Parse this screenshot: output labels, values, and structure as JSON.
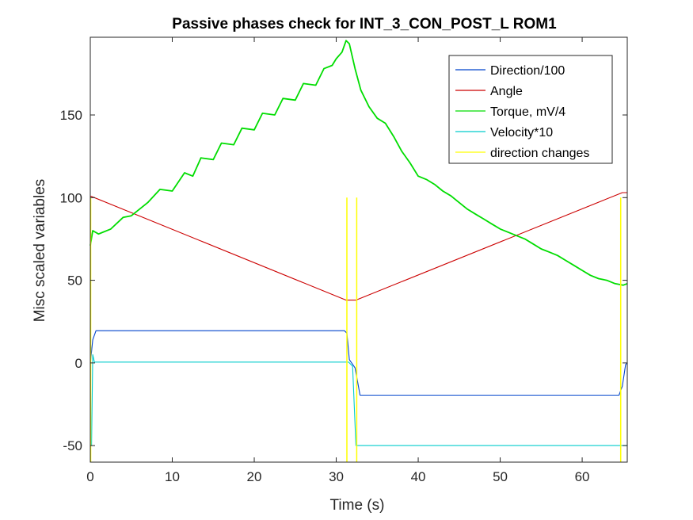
{
  "chart_data": {
    "type": "line",
    "title": "Passive phases check for INT_3_CON_POST_L ROM1",
    "xlabel": "Time (s)",
    "ylabel": "Misc scaled variables",
    "xlim": [
      0,
      65.5
    ],
    "ylim": [
      -60,
      197
    ],
    "xticks": [
      0,
      10,
      20,
      30,
      40,
      50,
      60
    ],
    "yticks": [
      -50,
      0,
      50,
      100,
      150
    ],
    "xtick_labels": [
      "0",
      "10",
      "20",
      "30",
      "40",
      "50",
      "60"
    ],
    "ytick_labels": [
      "-50",
      "0",
      "50",
      "100",
      "150"
    ],
    "legend_position": "top-right",
    "series": [
      {
        "name": "Direction/100",
        "color": "#0044cc",
        "points": [
          [
            0,
            -0.5
          ],
          [
            0.3,
            14
          ],
          [
            0.7,
            19.5
          ],
          [
            31,
            19.5
          ],
          [
            31.3,
            18
          ],
          [
            31.6,
            2
          ],
          [
            32.3,
            -3
          ],
          [
            32.9,
            -19.5
          ],
          [
            64.5,
            -19.5
          ],
          [
            64.9,
            -14
          ],
          [
            65.3,
            -1
          ],
          [
            65.5,
            0
          ]
        ]
      },
      {
        "name": "Angle",
        "color": "#cc0000",
        "points": [
          [
            0,
            101
          ],
          [
            31.2,
            38
          ],
          [
            32.4,
            38
          ],
          [
            64.9,
            103
          ],
          [
            65.5,
            103
          ]
        ]
      },
      {
        "name": "Torque, mV/4",
        "color": "#00dd00",
        "points": [
          [
            0,
            71
          ],
          [
            0.3,
            80
          ],
          [
            1,
            78
          ],
          [
            2.5,
            81
          ],
          [
            4,
            88
          ],
          [
            5,
            89
          ],
          [
            7,
            97
          ],
          [
            8.5,
            105
          ],
          [
            10,
            104
          ],
          [
            11.5,
            115
          ],
          [
            12.5,
            113
          ],
          [
            13.5,
            124
          ],
          [
            15,
            123
          ],
          [
            16,
            133
          ],
          [
            17.5,
            132
          ],
          [
            18.5,
            142
          ],
          [
            20,
            141
          ],
          [
            21,
            151
          ],
          [
            22.5,
            150
          ],
          [
            23.5,
            160
          ],
          [
            25,
            159
          ],
          [
            26,
            169
          ],
          [
            27.5,
            168
          ],
          [
            28.5,
            178
          ],
          [
            29.5,
            180
          ],
          [
            30,
            184
          ],
          [
            30.7,
            188
          ],
          [
            31.2,
            195
          ],
          [
            31.6,
            193
          ],
          [
            32.3,
            178
          ],
          [
            33,
            165
          ],
          [
            34,
            155
          ],
          [
            35,
            148
          ],
          [
            36,
            145
          ],
          [
            37,
            137
          ],
          [
            38,
            128
          ],
          [
            39,
            121
          ],
          [
            40,
            113
          ],
          [
            41,
            111
          ],
          [
            42,
            108
          ],
          [
            43,
            104
          ],
          [
            44,
            101
          ],
          [
            45,
            97
          ],
          [
            46,
            93
          ],
          [
            47,
            90
          ],
          [
            48,
            87
          ],
          [
            49,
            84
          ],
          [
            50,
            81
          ],
          [
            51,
            79
          ],
          [
            52,
            77
          ],
          [
            53,
            75
          ],
          [
            54,
            72
          ],
          [
            55,
            69
          ],
          [
            56,
            67
          ],
          [
            57,
            65
          ],
          [
            58,
            62
          ],
          [
            59,
            59
          ],
          [
            60,
            56
          ],
          [
            61,
            53
          ],
          [
            62,
            51
          ],
          [
            63,
            50
          ],
          [
            64,
            48
          ],
          [
            65,
            47
          ],
          [
            65.5,
            48
          ]
        ]
      },
      {
        "name": "Velocity*10",
        "color": "#00cccc",
        "points": [
          [
            0,
            -50
          ],
          [
            0.15,
            -50
          ],
          [
            0.3,
            5
          ],
          [
            0.5,
            0.5
          ],
          [
            31.1,
            0.5
          ],
          [
            31.5,
            0.5
          ],
          [
            32,
            -2
          ],
          [
            32.4,
            -50
          ],
          [
            65.5,
            -50
          ]
        ]
      },
      {
        "name": "direction changes",
        "color": "#ffff00",
        "segments": [
          {
            "x": 0.05,
            "y1": -60,
            "y2": 100
          },
          {
            "x": 31.3,
            "y1": -60,
            "y2": 100
          },
          {
            "x": 32.5,
            "y1": -60,
            "y2": 100
          },
          {
            "x": 64.7,
            "y1": -60,
            "y2": 100
          }
        ]
      }
    ]
  }
}
